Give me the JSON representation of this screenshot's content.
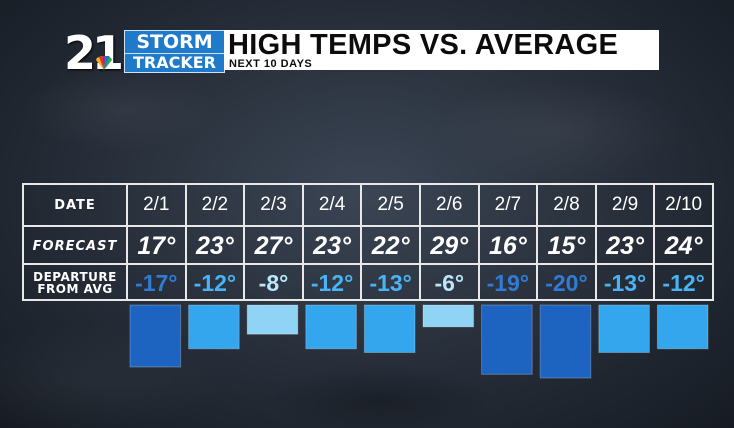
{
  "logo": {
    "number": "21",
    "line1": "STORM",
    "line2": "TRACKER"
  },
  "header": {
    "title": "HIGH TEMPS VS. AVERAGE",
    "subtitle": "NEXT 10 DAYS"
  },
  "table": {
    "row_labels": {
      "date": "DATE",
      "forecast": "FORECAST",
      "departure_line1": "DEPARTURE",
      "departure_line2": "FROM AVG"
    }
  },
  "colors": {
    "bar_mild": "#8fd3f5",
    "bar_medium": "#33a6ee",
    "bar_strong": "#1d63c0",
    "text_mild": "#b9e6fb",
    "text_medium": "#49b4f5",
    "text_strong": "#2f7bd6"
  },
  "chart_data": {
    "type": "bar",
    "title": "HIGH TEMPS VS. AVERAGE",
    "subtitle": "NEXT 10 DAYS",
    "categories": [
      "2/1",
      "2/2",
      "2/3",
      "2/4",
      "2/5",
      "2/6",
      "2/7",
      "2/8",
      "2/9",
      "2/10"
    ],
    "forecast": [
      "17°",
      "23°",
      "27°",
      "23°",
      "22°",
      "29°",
      "16°",
      "15°",
      "23°",
      "24°"
    ],
    "departure_labels": [
      "-17°",
      "-12°",
      "-8°",
      "-12°",
      "-13°",
      "-6°",
      "-19°",
      "-20°",
      "-13°",
      "-12°"
    ],
    "series": [
      {
        "values": [
          -17,
          -12,
          -8,
          -12,
          -13,
          -6,
          -19,
          -20,
          -13,
          -12
        ]
      }
    ],
    "ylim": [
      -20,
      0
    ],
    "grid": false,
    "legend": "none"
  }
}
